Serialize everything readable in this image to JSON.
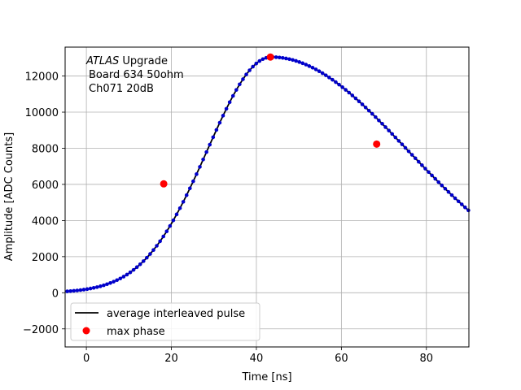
{
  "chart_data": {
    "type": "scatter",
    "xlabel": "Time [ns]",
    "ylabel": "Amplitude [ADC Counts]",
    "xlim": [
      -5,
      90
    ],
    "ylim": [
      -3000,
      13600
    ],
    "xticks": [
      0,
      20,
      40,
      60,
      80
    ],
    "yticks": [
      -2000,
      0,
      2000,
      4000,
      6000,
      8000,
      10000,
      12000
    ],
    "ytick_labels": [
      "−2000",
      "0",
      "2000",
      "4000",
      "6000",
      "8000",
      "10000",
      "12000"
    ],
    "grid": true,
    "legend_position": "lower-left",
    "annotation": {
      "line1_italic": "ATLAS",
      "line1_rest": " Upgrade",
      "line2": "Board 634 50ohm",
      "line3": "Ch071 20dB"
    },
    "colors": {
      "line": "#000000",
      "samples": "#0000cc",
      "max_phase": "#ff0000",
      "grid": "#b0b0b0"
    },
    "series": [
      {
        "name": "average interleaved pulse",
        "kind": "line+markers",
        "x_start": -4.5,
        "x_step": 0.78,
        "x_end": 90,
        "pulse_model": {
          "peak_time": 43.5,
          "peak_amplitude": 13050,
          "rise_sigma": 15,
          "fall_sigma": 32
        }
      },
      {
        "name": "max phase",
        "kind": "markers",
        "x": [
          18.2,
          43.3,
          68.3
        ],
        "y": [
          6030,
          13050,
          8230
        ]
      }
    ]
  }
}
